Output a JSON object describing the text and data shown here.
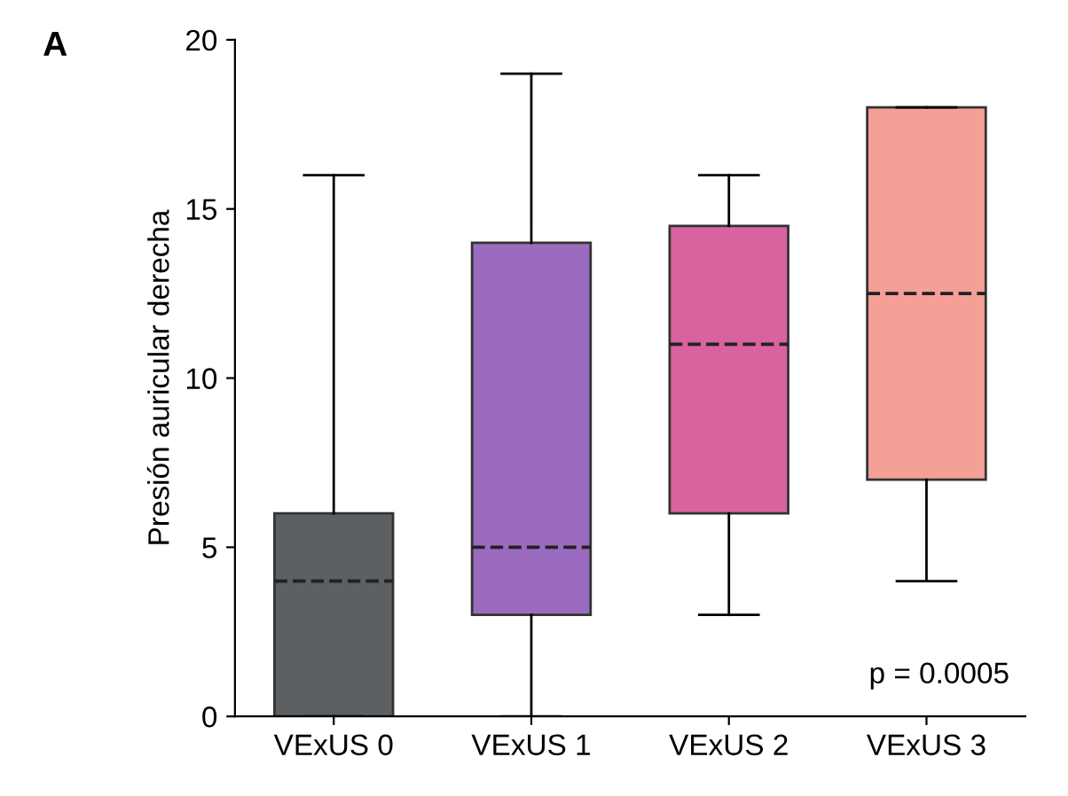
{
  "chart_data": {
    "type": "box",
    "ylabel": "Presión auricular derecha",
    "categories": [
      "VExUS 0",
      "VExUS 1",
      "VExUS 2",
      "VExUS 3"
    ],
    "boxes": [
      {
        "low": 0,
        "q1": 0,
        "median": 4,
        "q3": 6,
        "high": 16
      },
      {
        "low": 0,
        "q1": 3,
        "median": 5,
        "q3": 14,
        "high": 19
      },
      {
        "low": 3,
        "q1": 6,
        "median": 11,
        "q3": 14.5,
        "high": 16
      },
      {
        "low": 4,
        "q1": 7,
        "median": 12.5,
        "q3": 18,
        "high": 18
      }
    ],
    "colors": [
      "#5c6062",
      "#9b6bbf",
      "#d9639e",
      "#f4a097"
    ],
    "ylim": [
      0,
      20
    ],
    "yticks": [
      0,
      5,
      10,
      15,
      20
    ],
    "grid": false,
    "annotations": [
      "A",
      "p = 0.0005"
    ]
  }
}
